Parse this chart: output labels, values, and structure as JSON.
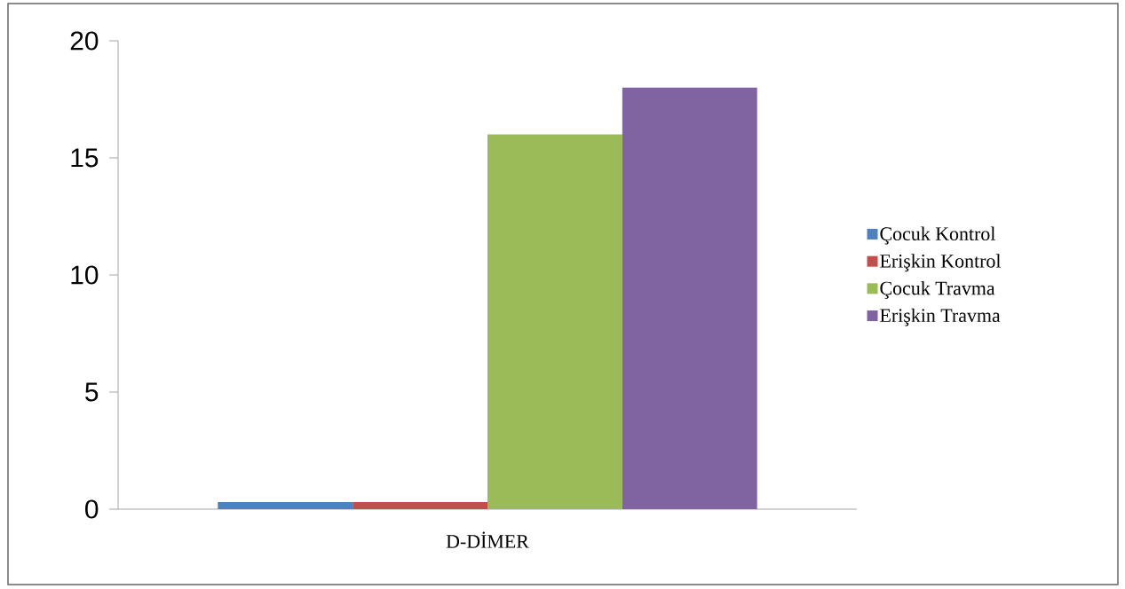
{
  "chart_data": {
    "type": "bar",
    "categories": [
      "D-DİMER"
    ],
    "series": [
      {
        "name": "Çocuk Kontrol",
        "color": "#4f81bd",
        "values": [
          0.3
        ]
      },
      {
        "name": "Erişkin Kontrol",
        "color": "#c0504d",
        "values": [
          0.3
        ]
      },
      {
        "name": "Çocuk Travma",
        "color": "#9bbb59",
        "values": [
          16
        ]
      },
      {
        "name": "Erişkin Travma",
        "color": "#8064a2",
        "values": [
          18
        ]
      }
    ],
    "ylim": [
      0,
      20
    ],
    "yticks": [
      0,
      5,
      10,
      15,
      20
    ],
    "legend": "right"
  }
}
